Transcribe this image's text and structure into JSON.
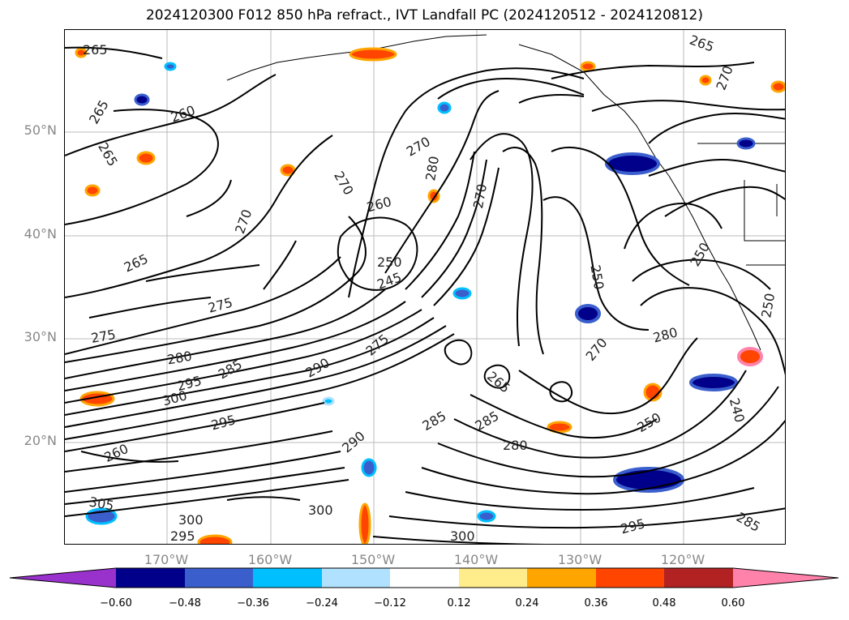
{
  "title": "2024120300 F012 850 hPa refract., IVT Landfall PC (2024120512 - 2024120812)",
  "map": {
    "projection": "cylindrical",
    "lat_labels": [
      "50°N",
      "40°N",
      "30°N",
      "20°N"
    ],
    "lon_labels": [
      "170°W",
      "160°W",
      "150°W",
      "140°W",
      "130°W",
      "120°W"
    ],
    "contour_labels": [
      {
        "text": "265"
      },
      {
        "text": "265"
      },
      {
        "text": "260"
      },
      {
        "text": "265"
      },
      {
        "text": "270"
      },
      {
        "text": "270"
      },
      {
        "text": "270"
      },
      {
        "text": "265"
      },
      {
        "text": "275"
      },
      {
        "text": "275"
      },
      {
        "text": "280"
      },
      {
        "text": "285"
      },
      {
        "text": "295"
      },
      {
        "text": "300"
      },
      {
        "text": "295"
      },
      {
        "text": "260"
      },
      {
        "text": "260"
      },
      {
        "text": "250"
      },
      {
        "text": "245"
      },
      {
        "text": "270"
      },
      {
        "text": "280"
      },
      {
        "text": "290"
      },
      {
        "text": "275"
      },
      {
        "text": "285"
      },
      {
        "text": "290"
      },
      {
        "text": "265"
      },
      {
        "text": "285"
      },
      {
        "text": "280"
      },
      {
        "text": "250"
      },
      {
        "text": "280"
      },
      {
        "text": "270"
      },
      {
        "text": "250"
      },
      {
        "text": "240"
      },
      {
        "text": "265"
      },
      {
        "text": "270"
      },
      {
        "text": "300"
      },
      {
        "text": "295"
      },
      {
        "text": "305"
      },
      {
        "text": "300"
      },
      {
        "text": "295"
      },
      {
        "text": "250"
      },
      {
        "text": "250"
      },
      {
        "text": "285"
      },
      {
        "text": "300"
      }
    ]
  },
  "colorbar": {
    "colors": [
      "#9932cc",
      "#00008b",
      "#3a5fcd",
      "#00bfff",
      "#b0e2ff",
      "#ffffff",
      "#ffec8b",
      "#ffa500",
      "#ff4500",
      "#b22222",
      "#ff82ab"
    ],
    "ticks": [
      "−0.60",
      "−0.48",
      "−0.36",
      "−0.24",
      "−0.12",
      "0.12",
      "0.24",
      "0.36",
      "0.48",
      "0.60"
    ]
  }
}
